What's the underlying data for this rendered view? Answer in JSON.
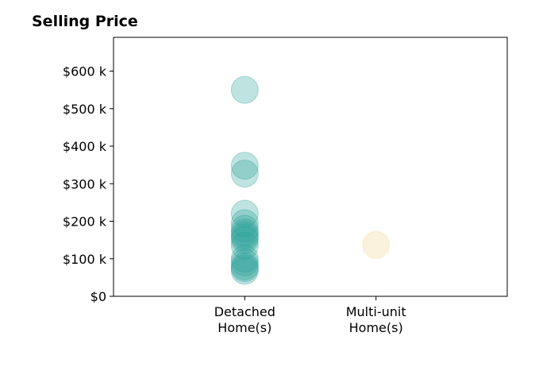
{
  "chart_data": {
    "type": "scatter",
    "title": "Selling Price",
    "categories": [
      [
        "Detached",
        "Home(s)"
      ],
      [
        "Multi-unit",
        "Home(s)"
      ]
    ],
    "y_ticks": [
      "$0",
      "$100 k",
      "$200 k",
      "$300 k",
      "$400 k",
      "$500 k",
      "$600 k"
    ],
    "y_tick_values": [
      0,
      100000,
      200000,
      300000,
      400000,
      500000,
      600000
    ],
    "ylim": [
      0,
      690000
    ],
    "xlim": [
      -1,
      2
    ],
    "grid": false,
    "series": [
      {
        "category_index": 0,
        "color": "#2aa198",
        "values": [
          550000,
          348000,
          327000,
          220000,
          195000,
          180000,
          170000,
          163000,
          157000,
          150000,
          135000,
          100000,
          90000,
          80000,
          75000,
          68000
        ]
      },
      {
        "category_index": 1,
        "color": "#f0d38a",
        "values": [
          137000
        ]
      }
    ]
  }
}
